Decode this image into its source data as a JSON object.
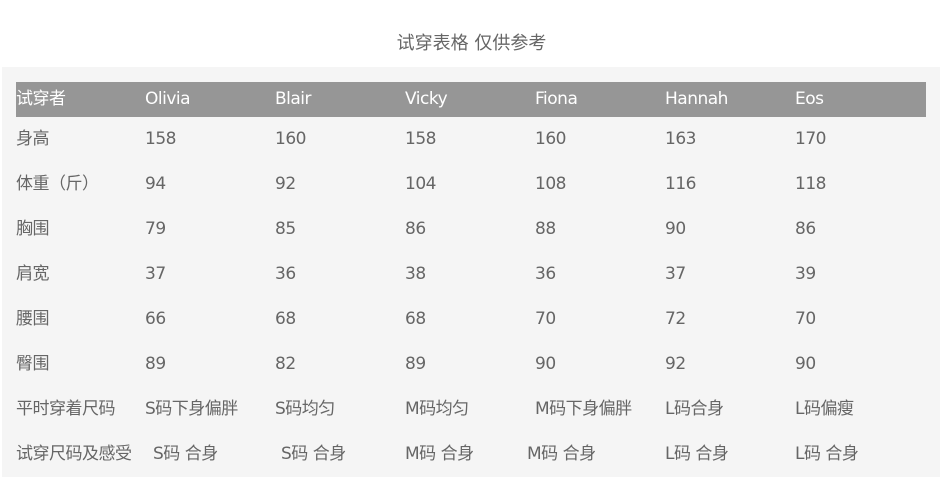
{
  "title": "试穿表格 仅供参考",
  "table": {
    "headers": [
      "试穿者",
      "Olivia",
      "Blair",
      "Vicky",
      "Fiona",
      "Hannah",
      "Eos"
    ],
    "rows": [
      [
        "身高",
        "158",
        "160",
        "158",
        "160",
        "163",
        "170"
      ],
      [
        "体重（斤）",
        "94",
        "92",
        "104",
        "108",
        "116",
        "118"
      ],
      [
        "胸围",
        "79",
        "85",
        "86",
        "88",
        "90",
        "86"
      ],
      [
        "肩宽",
        "37",
        "36",
        "38",
        "36",
        "37",
        "39"
      ],
      [
        "腰围",
        "66",
        "68",
        "68",
        "70",
        "72",
        "70"
      ],
      [
        "臀围",
        "89",
        "82",
        "89",
        "90",
        "92",
        "90"
      ],
      [
        "平时穿着尺码",
        "S码下身偏胖",
        "S码均匀",
        "M码均匀",
        "M码下身偏胖",
        "L码合身",
        "L码偏瘦"
      ],
      [
        "试穿尺码及感受",
        "S码 合身",
        "S码 合身",
        "M码 合身",
        "M码 合身",
        "L码 合身",
        "L码 合身"
      ]
    ]
  },
  "colors": {
    "header_bg": "#969696",
    "panel_bg": "#f5f5f5",
    "text": "#666666"
  }
}
